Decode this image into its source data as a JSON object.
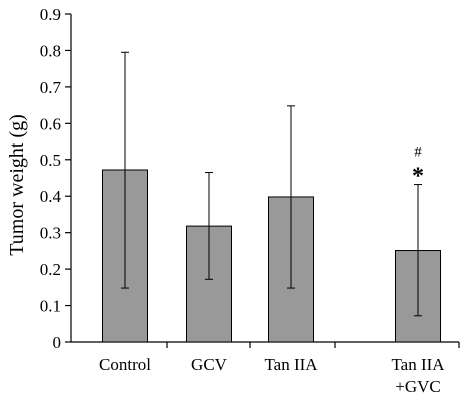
{
  "chart_data": {
    "type": "bar",
    "title": "",
    "xlabel": "",
    "ylabel": "Tumor weight (g)",
    "ylim": [
      0,
      0.9
    ],
    "yticks": [
      "0",
      "0.1",
      "0.2",
      "0.3",
      "0.4",
      "0.5",
      "0.6",
      "0.7",
      "0.8",
      "0.9"
    ],
    "grid": false,
    "legend": "none",
    "bar_color": "#999999",
    "categories": [
      {
        "line1": "Control",
        "line2": ""
      },
      {
        "line1": "GCV",
        "line2": ""
      },
      {
        "line1": "Tan IIA",
        "line2": ""
      },
      {
        "line1": "Tan IIA",
        "line2": "+GVC"
      }
    ],
    "values": [
      0.472,
      0.318,
      0.398,
      0.251
    ],
    "error_upper": [
      0.795,
      0.465,
      0.648,
      0.432
    ],
    "error_lower": [
      0.148,
      0.172,
      0.148,
      0.072
    ],
    "annotations": [
      {
        "category_index": 3,
        "hash": "#",
        "star": "*"
      }
    ]
  }
}
